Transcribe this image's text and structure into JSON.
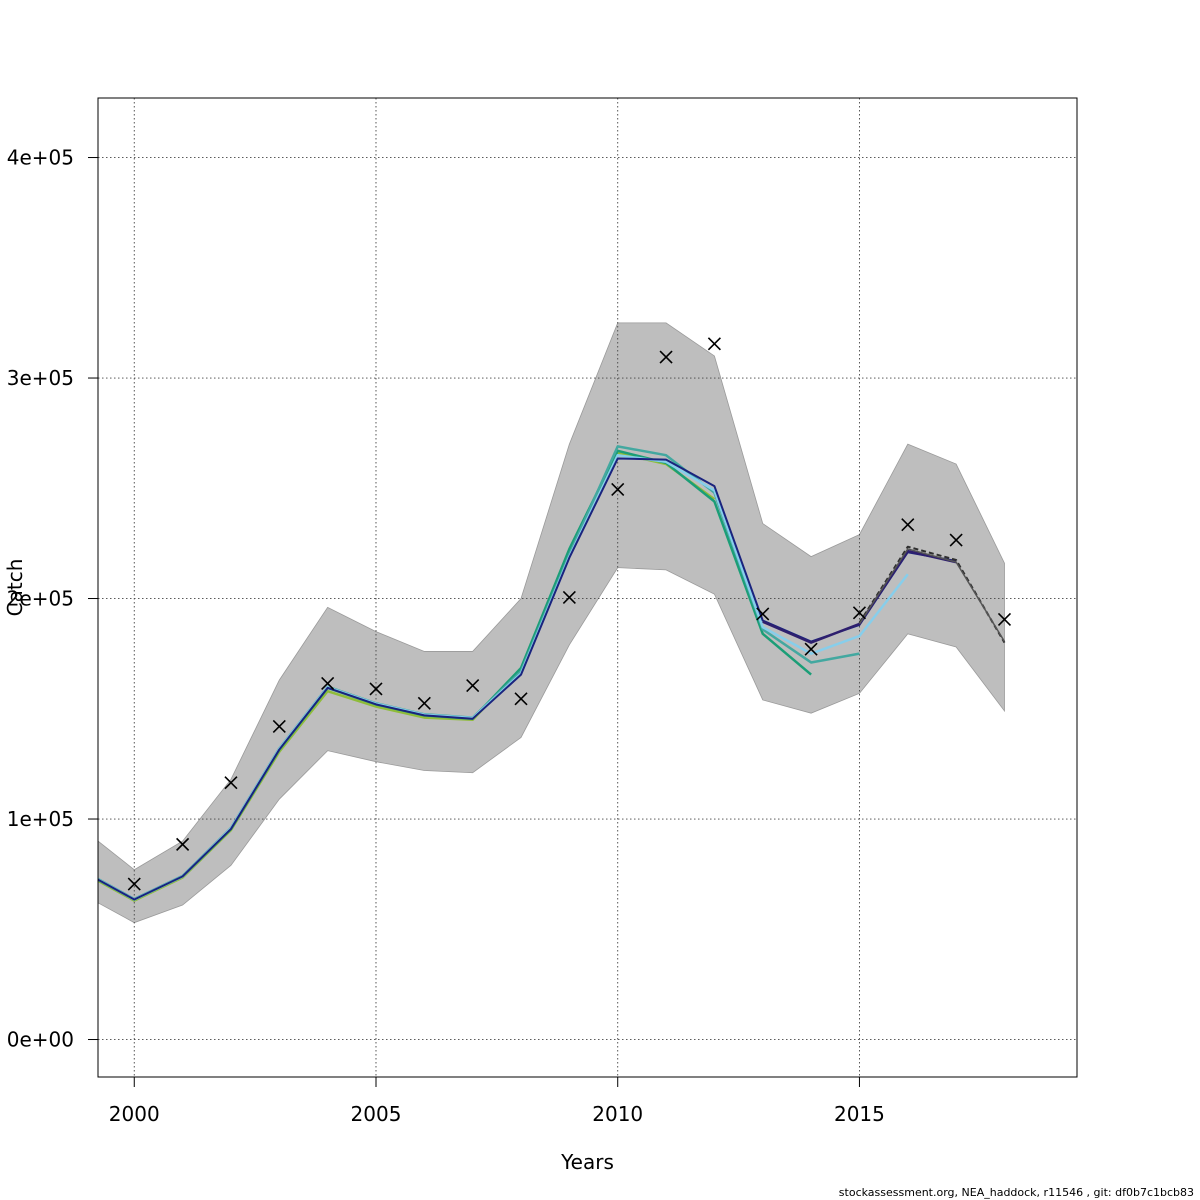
{
  "chart_data": {
    "type": "line",
    "xlabel": "Years",
    "ylabel": "Catch",
    "xlim": [
      1999.25,
      2019.5
    ],
    "ylim": [
      -17000,
      427000
    ],
    "x_ticks": [
      {
        "value": 2000,
        "label": "2000"
      },
      {
        "value": 2005,
        "label": "2005"
      },
      {
        "value": 2010,
        "label": "2010"
      },
      {
        "value": 2015,
        "label": "2015"
      }
    ],
    "y_ticks": [
      {
        "value": 0,
        "label": "0e+00"
      },
      {
        "value": 100000,
        "label": "1e+05"
      },
      {
        "value": 200000,
        "label": "2e+05"
      },
      {
        "value": 300000,
        "label": "3e+05"
      },
      {
        "value": 400000,
        "label": "4e+05"
      }
    ],
    "grid": true,
    "confidence_band": {
      "color": "#bebebe",
      "x": [
        1999,
        2000,
        2001,
        2002,
        2003,
        2004,
        2005,
        2006,
        2007,
        2008,
        2009,
        2010,
        2011,
        2012,
        2013,
        2014,
        2015,
        2016,
        2017,
        2018
      ],
      "upper": [
        90000,
        77000,
        90000,
        118000,
        163000,
        196000,
        185000,
        176000,
        176000,
        200000,
        270000,
        325000,
        325000,
        310000,
        234000,
        219000,
        229000,
        270000,
        261000,
        216000
      ],
      "lower": [
        62000,
        53000,
        61000,
        79000,
        109000,
        131000,
        126000,
        122000,
        121000,
        137000,
        179000,
        214000,
        213000,
        202000,
        154000,
        148000,
        157000,
        184000,
        178000,
        149000
      ]
    },
    "observed": {
      "marker": "x",
      "color": "#000000",
      "x": [
        2000,
        2001,
        2002,
        2003,
        2004,
        2005,
        2006,
        2007,
        2008,
        2009,
        2010,
        2011,
        2012,
        2013,
        2014,
        2015,
        2016,
        2017,
        2018
      ],
      "y": [
        70500,
        88500,
        116500,
        142000,
        161500,
        159000,
        152500,
        160500,
        154500,
        200500,
        249500,
        309500,
        315500,
        193000,
        177000,
        193500,
        233500,
        226500,
        190500
      ]
    },
    "series": [
      {
        "color": "#8fbc3a",
        "width": 2.5,
        "dash": false,
        "x": [
          1999,
          2000,
          2001,
          2002,
          2003,
          2004,
          2005,
          2006,
          2007,
          2008,
          2009,
          2010,
          2011,
          2012
        ],
        "y": [
          72000,
          63000,
          73500,
          95000,
          130500,
          158000,
          151000,
          146000,
          145000,
          168000,
          221500,
          266000,
          261000,
          245000
        ]
      },
      {
        "color": "#1b9e77",
        "width": 2.5,
        "dash": false,
        "x": [
          1999,
          2000,
          2001,
          2002,
          2003,
          2004,
          2005,
          2006,
          2007,
          2008,
          2009,
          2010,
          2011,
          2012,
          2013,
          2014
        ],
        "y": [
          72500,
          63500,
          74000,
          95500,
          131500,
          159500,
          152000,
          147000,
          145500,
          168500,
          222500,
          267000,
          261500,
          244000,
          184000,
          165500
        ]
      },
      {
        "color": "#43a8a0",
        "width": 2.5,
        "dash": false,
        "x": [
          1999,
          2000,
          2001,
          2002,
          2003,
          2004,
          2005,
          2006,
          2007,
          2008,
          2009,
          2010,
          2011,
          2012,
          2013,
          2014,
          2015
        ],
        "y": [
          72800,
          63700,
          74200,
          96000,
          132000,
          160000,
          152500,
          147500,
          146000,
          167000,
          220000,
          269000,
          265000,
          248000,
          186000,
          171000,
          175000
        ]
      },
      {
        "color": "#87ceeb",
        "width": 2.5,
        "dash": false,
        "x": [
          1999,
          2000,
          2001,
          2002,
          2003,
          2004,
          2005,
          2006,
          2007,
          2008,
          2009,
          2010,
          2011,
          2012,
          2013,
          2014,
          2015,
          2016
        ],
        "y": [
          72600,
          63500,
          74000,
          95800,
          131800,
          159800,
          152300,
          147300,
          145800,
          166000,
          219000,
          265000,
          262000,
          249000,
          187000,
          175000,
          183000,
          211000
        ]
      },
      {
        "color": "#1a237e",
        "width": 2.0,
        "dash": false,
        "x": [
          1999,
          2000,
          2001,
          2002,
          2003,
          2004,
          2005,
          2006,
          2007,
          2008,
          2009,
          2010,
          2011,
          2012,
          2013,
          2014,
          2015,
          2016,
          2017
        ],
        "y": [
          72500,
          63500,
          74000,
          95500,
          131500,
          159500,
          152000,
          147000,
          145500,
          165500,
          218500,
          263500,
          263000,
          251000,
          190000,
          180500,
          188000,
          221000,
          217000
        ]
      },
      {
        "color": "#2e1f6e",
        "width": 2.5,
        "dash": false,
        "x": [
          2013,
          2014,
          2015,
          2016,
          2017
        ],
        "y": [
          189500,
          180000,
          188500,
          221500,
          216500
        ]
      },
      {
        "color": "#2f2f2f",
        "width": 2.0,
        "dash": true,
        "x": [
          2015,
          2016,
          2017,
          2018
        ],
        "y": [
          189000,
          223500,
          217500,
          180000
        ]
      },
      {
        "color": "#555555",
        "width": 1.5,
        "dash": false,
        "x": [
          2015,
          2016,
          2017,
          2018
        ],
        "y": [
          188500,
          222500,
          216500,
          180500
        ]
      }
    ]
  },
  "footer_text": "stockassessment.org, NEA_haddock, r11546 , git: df0b7c1bcb83"
}
